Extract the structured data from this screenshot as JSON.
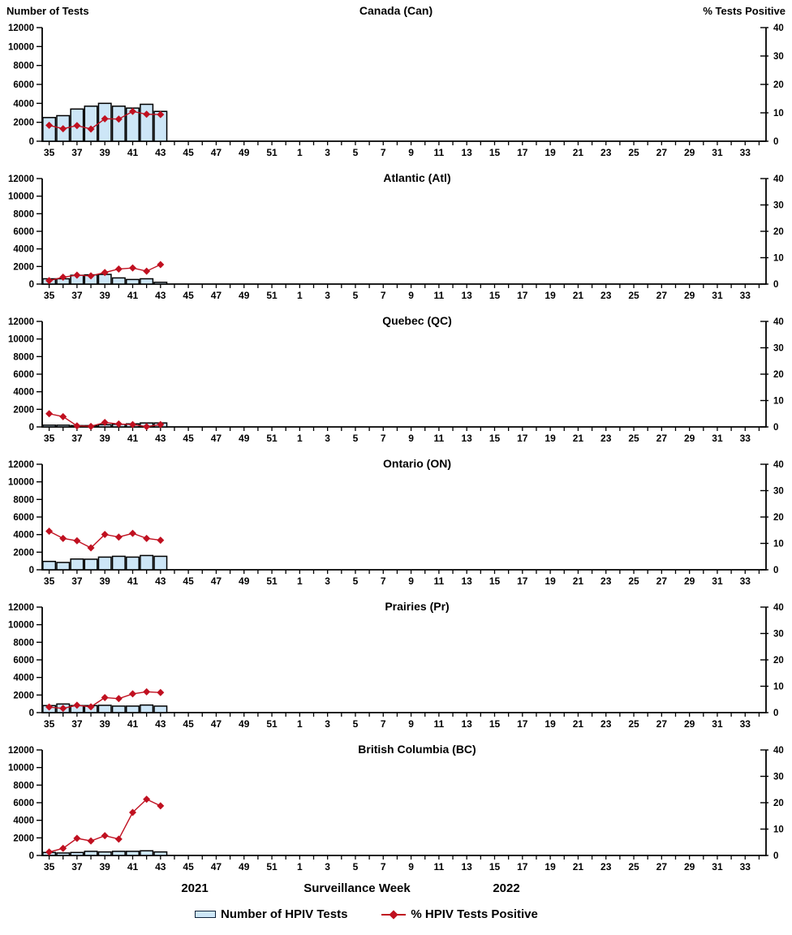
{
  "header": {
    "left_axis_title": "Number of Tests",
    "right_axis_title": "% Tests Positive"
  },
  "footer": {
    "year_left": "2021",
    "x_axis_title": "Surveillance Week",
    "year_right": "2022"
  },
  "legend": {
    "bar_label": "Number of HPIV Tests",
    "line_label": "% HPIV Tests Positive"
  },
  "colors": {
    "bar_fill": "#CDE6F7",
    "bar_border": "#000000",
    "line": "#C01020",
    "axis": "#000000"
  },
  "x_axis": {
    "week_sequence_start": 35,
    "weeks_total": 52,
    "tick_labels": [
      "35",
      "37",
      "39",
      "41",
      "43",
      "45",
      "47",
      "49",
      "51",
      "1",
      "3",
      "5",
      "7",
      "9",
      "11",
      "13",
      "15",
      "17",
      "19",
      "21",
      "23",
      "25",
      "27",
      "29",
      "31",
      "33"
    ],
    "first_data_week": 35
  },
  "left_axis": {
    "title": "Number of Tests",
    "min": 0,
    "max": 12000,
    "step": 2000
  },
  "right_axis": {
    "title": "% Tests Positive",
    "min": 0,
    "max": 40,
    "step": 10
  },
  "chart_data": [
    {
      "type": "bar+line",
      "title": "Canada (Can)",
      "categories_weeks": [
        35,
        36,
        37,
        38,
        39,
        40,
        41,
        42,
        43
      ],
      "series": [
        {
          "name": "Number of HPIV Tests",
          "axis": "left",
          "values": [
            2500,
            2700,
            3400,
            3700,
            4000,
            3700,
            3500,
            3900,
            3150
          ]
        },
        {
          "name": "% HPIV Tests Positive",
          "axis": "right",
          "values": [
            5.6,
            4.4,
            5.5,
            4.3,
            7.9,
            7.8,
            10.5,
            9.5,
            9.4
          ]
        }
      ],
      "left_ylim": [
        0,
        12000
      ],
      "right_ylim": [
        0,
        40
      ]
    },
    {
      "type": "bar+line",
      "title": "Atlantic (Atl)",
      "categories_weeks": [
        35,
        36,
        37,
        38,
        39,
        40,
        41,
        42,
        43
      ],
      "series": [
        {
          "name": "Number of HPIV Tests",
          "axis": "left",
          "values": [
            600,
            600,
            1000,
            1050,
            1100,
            700,
            520,
            600,
            200
          ]
        },
        {
          "name": "% HPIV Tests Positive",
          "axis": "right",
          "values": [
            1.3,
            2.6,
            3.4,
            3.1,
            4.4,
            5.7,
            6.1,
            4.9,
            7.4
          ]
        }
      ],
      "left_ylim": [
        0,
        12000
      ],
      "right_ylim": [
        0,
        40
      ]
    },
    {
      "type": "bar+line",
      "title": "Quebec (QC)",
      "categories_weeks": [
        35,
        36,
        37,
        38,
        39,
        40,
        41,
        42,
        43
      ],
      "series": [
        {
          "name": "Number of HPIV Tests",
          "axis": "left",
          "values": [
            200,
            200,
            150,
            150,
            250,
            300,
            350,
            450,
            450
          ]
        },
        {
          "name": "% HPIV Tests Positive",
          "axis": "right",
          "values": [
            5.0,
            3.9,
            0.4,
            0.2,
            1.7,
            1.1,
            0.9,
            0.1,
            0.9
          ]
        }
      ],
      "left_ylim": [
        0,
        12000
      ],
      "right_ylim": [
        0,
        40
      ]
    },
    {
      "type": "bar+line",
      "title": "Ontario (ON)",
      "categories_weeks": [
        35,
        36,
        37,
        38,
        39,
        40,
        41,
        42,
        43
      ],
      "series": [
        {
          "name": "Number of HPIV Tests",
          "axis": "left",
          "values": [
            950,
            830,
            1220,
            1200,
            1440,
            1530,
            1440,
            1620,
            1530
          ]
        },
        {
          "name": "% HPIV Tests Positive",
          "axis": "right",
          "values": [
            14.6,
            11.9,
            11.0,
            8.3,
            13.4,
            12.4,
            13.8,
            11.9,
            11.2
          ]
        }
      ],
      "left_ylim": [
        0,
        12000
      ],
      "right_ylim": [
        0,
        40
      ]
    },
    {
      "type": "bar+line",
      "title": "Prairies (Pr)",
      "categories_weeks": [
        35,
        36,
        37,
        38,
        39,
        40,
        41,
        42,
        43
      ],
      "series": [
        {
          "name": "Number of HPIV Tests",
          "axis": "left",
          "values": [
            800,
            980,
            800,
            800,
            830,
            740,
            740,
            860,
            740
          ]
        },
        {
          "name": "% HPIV Tests Positive",
          "axis": "right",
          "values": [
            2.1,
            1.6,
            2.8,
            2.2,
            5.7,
            5.3,
            7.1,
            7.9,
            7.6
          ]
        }
      ],
      "left_ylim": [
        0,
        12000
      ],
      "right_ylim": [
        0,
        40
      ]
    },
    {
      "type": "bar+line",
      "title": "British Columbia (BC)",
      "categories_weeks": [
        35,
        36,
        37,
        38,
        39,
        40,
        41,
        42,
        43
      ],
      "series": [
        {
          "name": "Number of HPIV Tests",
          "axis": "left",
          "values": [
            340,
            280,
            340,
            470,
            400,
            470,
            470,
            530,
            400
          ]
        },
        {
          "name": "% HPIV Tests Positive",
          "axis": "right",
          "values": [
            1.3,
            2.7,
            6.5,
            5.5,
            7.5,
            6.2,
            16.3,
            21.3,
            18.8
          ]
        }
      ],
      "left_ylim": [
        0,
        12000
      ],
      "right_ylim": [
        0,
        40
      ]
    }
  ]
}
